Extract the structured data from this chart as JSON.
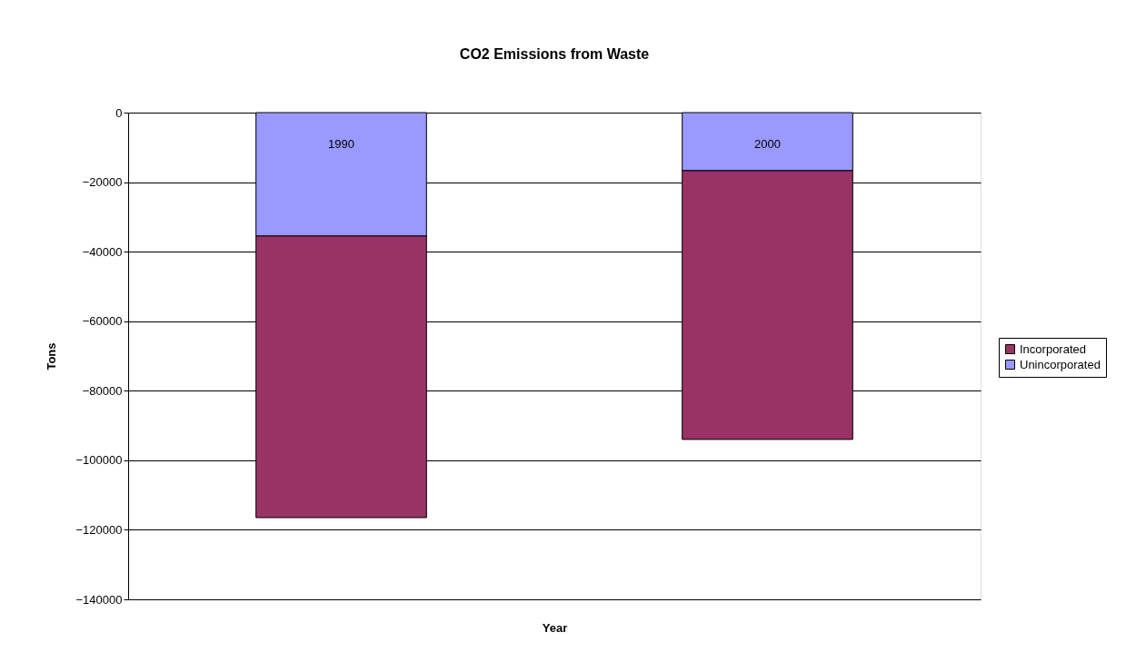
{
  "chart_data": {
    "type": "bar",
    "title": "CO2 Emissions from Waste",
    "xlabel": "Year",
    "ylabel": "Tons",
    "categories": [
      "1990",
      "2000"
    ],
    "series": [
      {
        "name": "Unincorporated",
        "color": "#9999ff",
        "values": [
          -35500,
          -16700
        ]
      },
      {
        "name": "Incorporated",
        "color": "#993366",
        "values": [
          -81000,
          -77300
        ]
      }
    ],
    "stacked": true,
    "ylim": [
      -140000,
      0
    ],
    "yticks": [
      -140000,
      -120000,
      -100000,
      -80000,
      -60000,
      -40000,
      -20000,
      0
    ],
    "grid": "y",
    "legend": "right"
  }
}
